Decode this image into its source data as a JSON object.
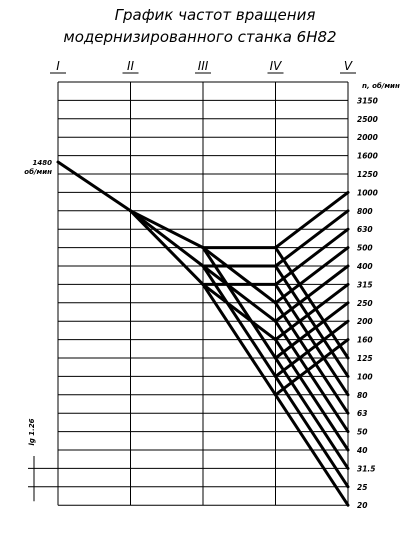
{
  "title": [
    "График частот вращения",
    "модернизированного станка 6Н82"
  ],
  "shafts": [
    "I",
    "II",
    "III",
    "IV",
    "V"
  ],
  "unit_label": "n, об/мин",
  "speeds": [
    "3150",
    "2500",
    "2000",
    "1600",
    "1250",
    "1000",
    "800",
    "630",
    "500",
    "400",
    "315",
    "250",
    "200",
    "160",
    "125",
    "100",
    "80",
    "63",
    "50",
    "40",
    "31.5",
    "25",
    "20"
  ],
  "input_label": [
    "1480",
    "об/мин"
  ],
  "step_label": "lg 1.26"
}
